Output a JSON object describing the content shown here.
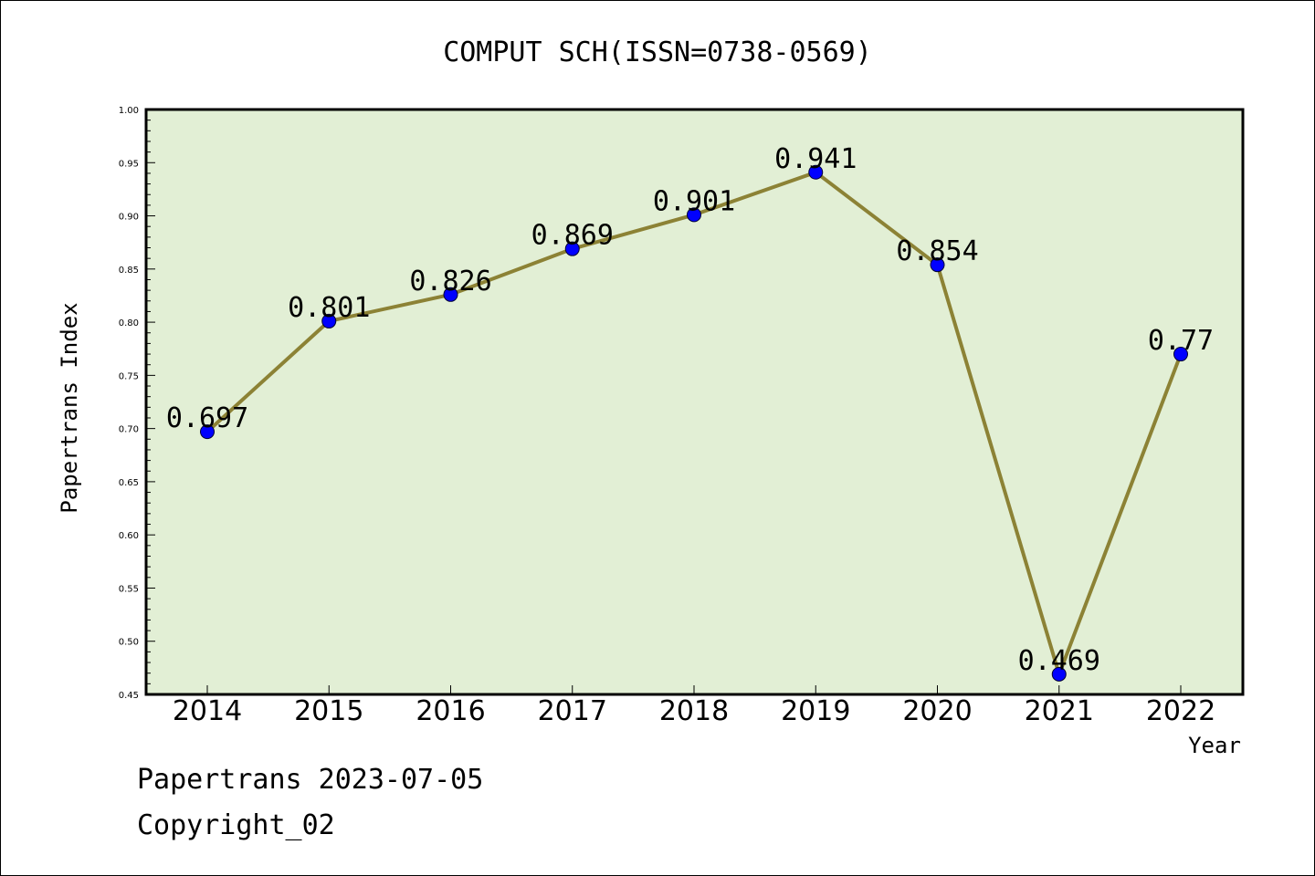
{
  "chart_data": {
    "type": "line",
    "title": "COMPUT SCH(ISSN=0738-0569)",
    "xlabel": "Year",
    "ylabel": "Papertrans Index",
    "categories": [
      "2014",
      "2015",
      "2016",
      "2017",
      "2018",
      "2019",
      "2020",
      "2021",
      "2022"
    ],
    "values": [
      0.697,
      0.801,
      0.826,
      0.869,
      0.901,
      0.941,
      0.854,
      0.469,
      0.77
    ],
    "data_labels": [
      "0.697",
      "0.801",
      "0.826",
      "0.869",
      "0.901",
      "0.941",
      "0.854",
      "0.469",
      "0.77"
    ],
    "ylim": [
      0.45,
      1.0
    ],
    "yticks": [
      "0.45",
      "0.50",
      "0.55",
      "0.60",
      "0.65",
      "0.70",
      "0.75",
      "0.80",
      "0.85",
      "0.90",
      "0.95",
      "1.00"
    ],
    "grid": false,
    "legend": "none",
    "colors": {
      "plot_background": "#e2efd5",
      "line": "#8c8235",
      "marker": "#0000ff"
    }
  },
  "footer": {
    "line1": "Papertrans 2023-07-05",
    "line2": "Copyright_02"
  }
}
